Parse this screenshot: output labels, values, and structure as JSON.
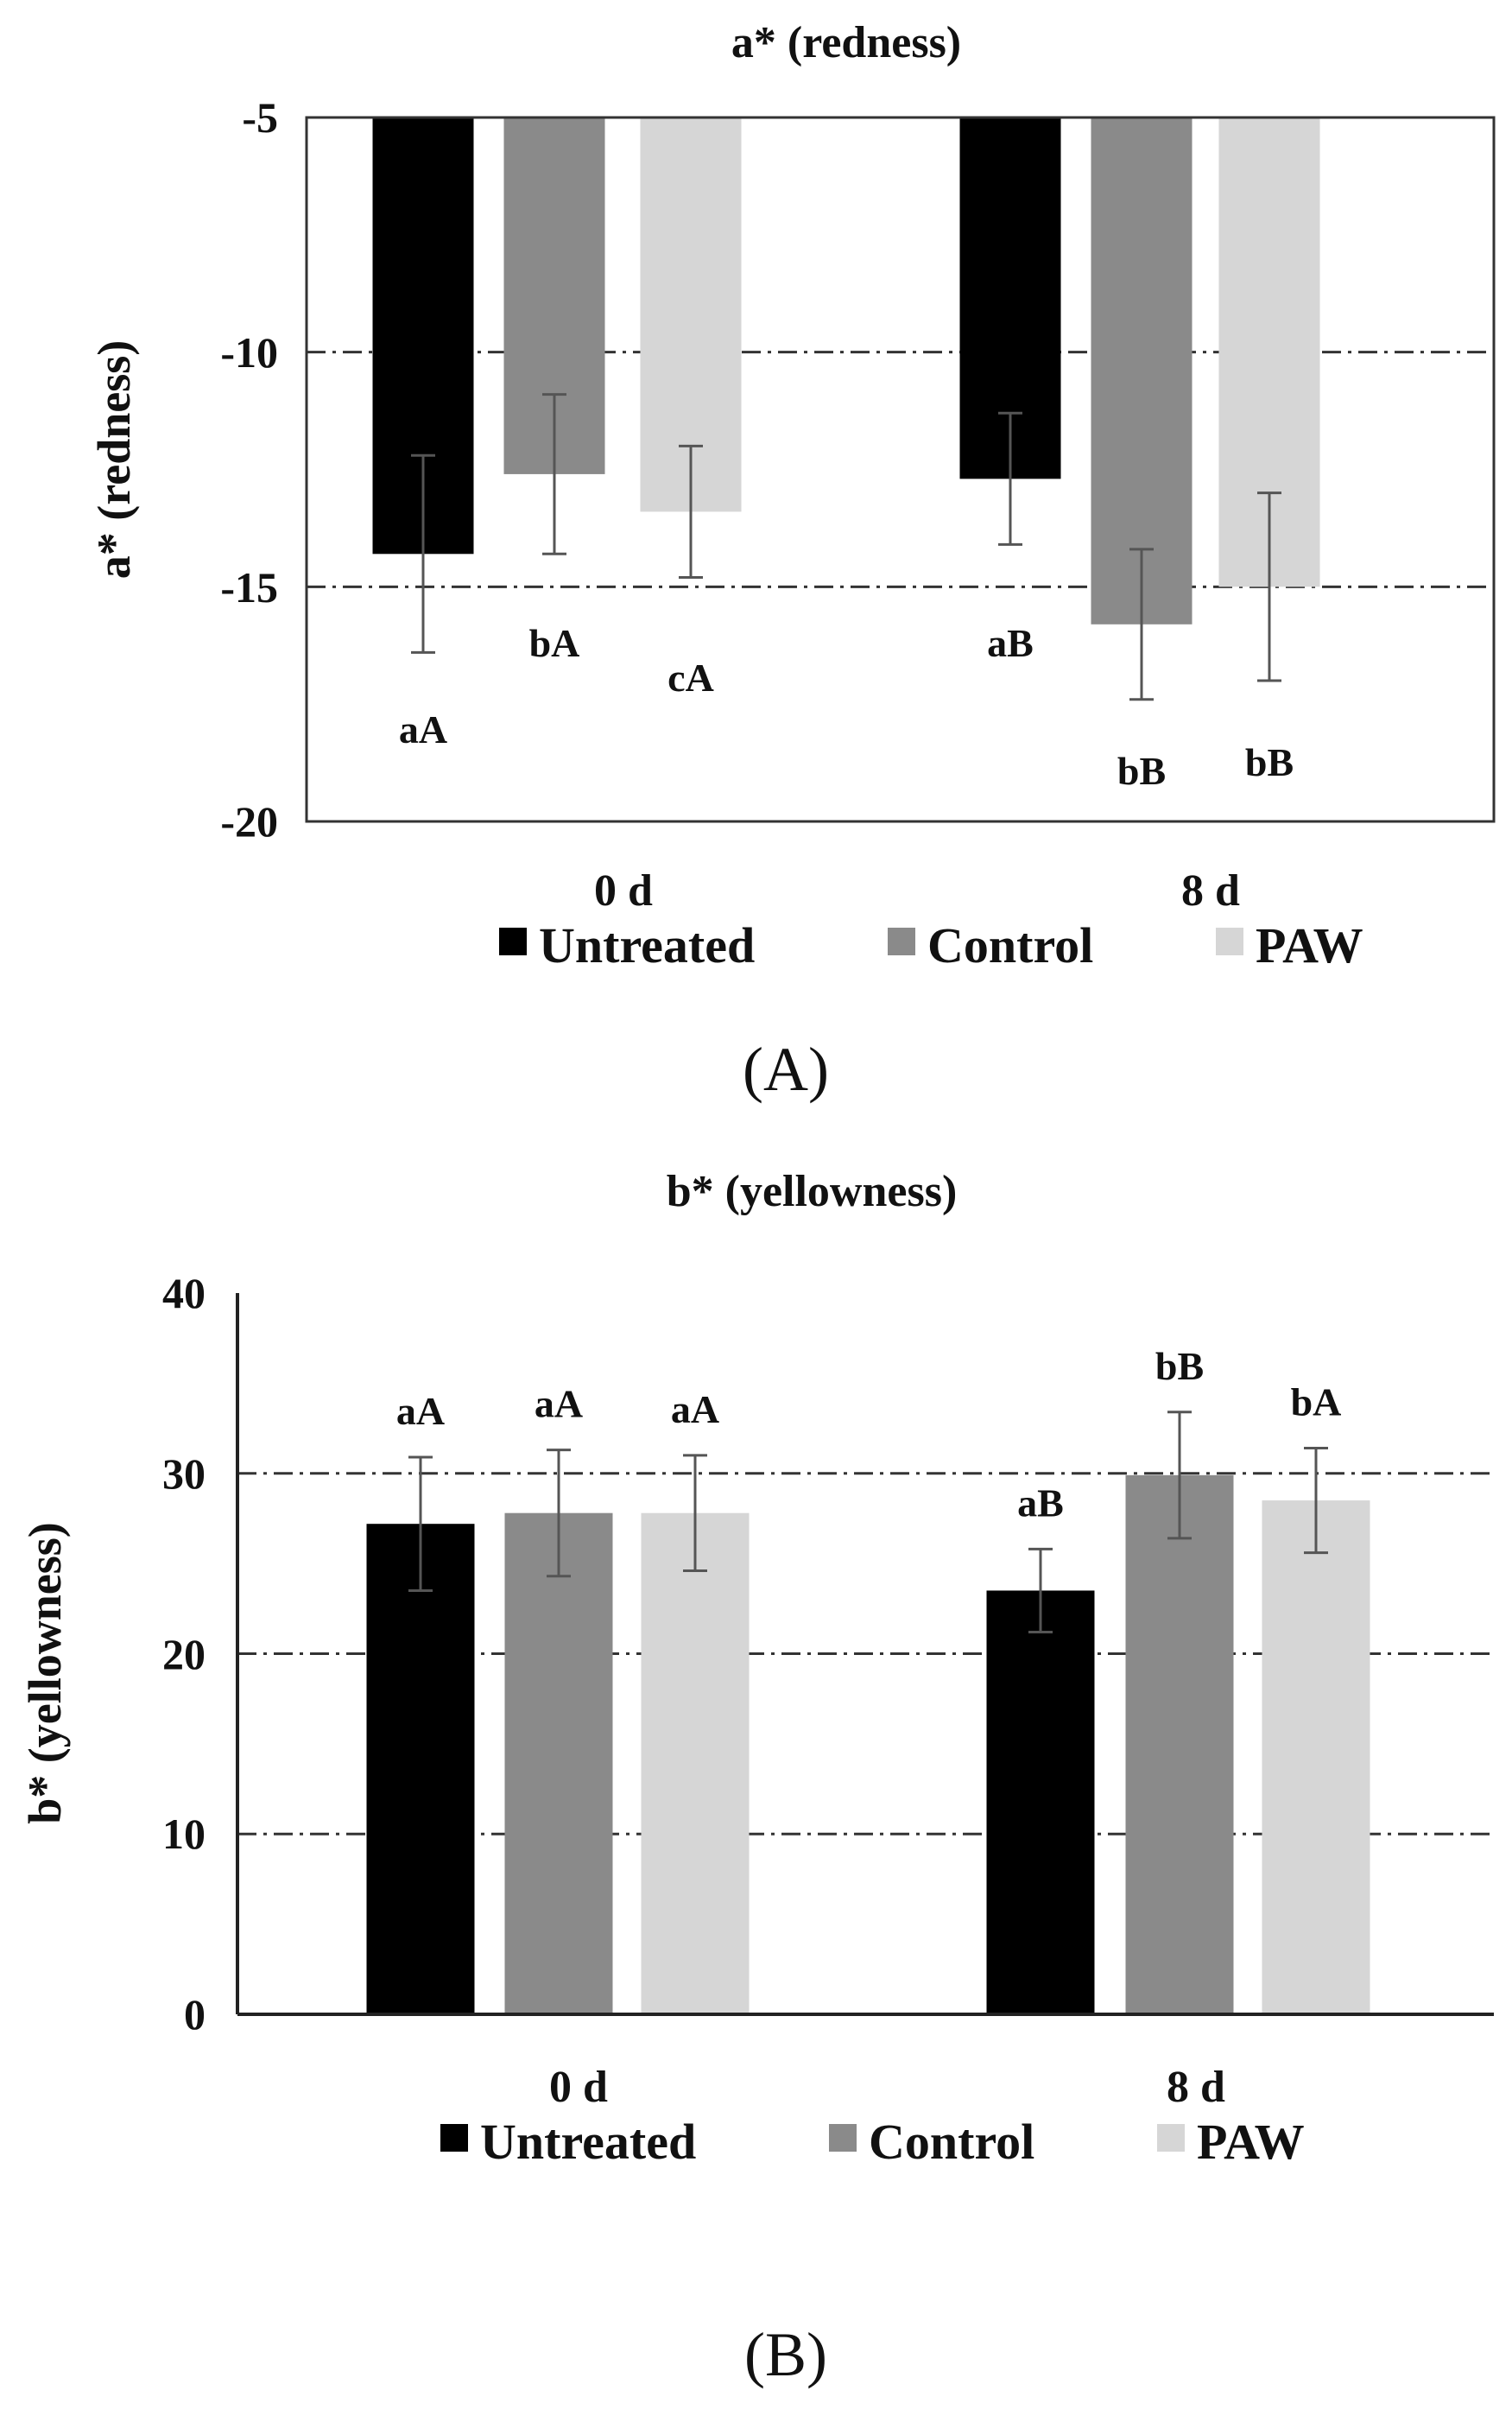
{
  "chart_data": [
    {
      "type": "bar",
      "title": "a* (redness)",
      "ylabel": "a* (redness)",
      "xlabel": "",
      "ylim": [
        -20,
        -5
      ],
      "yticks": [
        -5,
        -10,
        -15,
        -20
      ],
      "grid": "horizontal dash-dot",
      "categories": [
        "0 d",
        "8 d"
      ],
      "series": [
        {
          "name": "Untreated",
          "color": "#000000",
          "values": [
            -14.3,
            -12.7
          ],
          "errors": [
            2.1,
            1.4
          ],
          "labels": [
            "aA",
            "aB"
          ]
        },
        {
          "name": "Control",
          "color": "#8a8a8a",
          "values": [
            -12.6,
            -15.8
          ],
          "errors": [
            1.7,
            1.6
          ],
          "labels": [
            "bA",
            "bB"
          ]
        },
        {
          "name": "PAW",
          "color": "#d6d6d6",
          "values": [
            -13.4,
            -15.0
          ],
          "errors": [
            1.4,
            2.0
          ],
          "labels": [
            "cA",
            "bB"
          ]
        }
      ],
      "legend": "bottom",
      "panel_label": "(A)"
    },
    {
      "type": "bar",
      "title": "b* (yellowness)",
      "ylabel": "b* (yellowness)",
      "xlabel": "",
      "ylim": [
        0,
        40
      ],
      "yticks": [
        0,
        10,
        20,
        30,
        40
      ],
      "grid": "horizontal dash-dot",
      "categories": [
        "0 d",
        "8 d"
      ],
      "series": [
        {
          "name": "Untreated",
          "color": "#000000",
          "values": [
            27.2,
            23.5
          ],
          "errors": [
            3.7,
            2.3
          ],
          "labels": [
            "aA",
            "aB"
          ]
        },
        {
          "name": "Control",
          "color": "#8a8a8a",
          "values": [
            27.8,
            29.9
          ],
          "errors": [
            3.5,
            3.5
          ],
          "labels": [
            "aA",
            "bB"
          ]
        },
        {
          "name": "PAW",
          "color": "#d6d6d6",
          "values": [
            27.8,
            28.5
          ],
          "errors": [
            3.2,
            2.9
          ],
          "labels": [
            "aA",
            "bA"
          ]
        }
      ],
      "legend": "bottom",
      "panel_label": "(B)"
    }
  ]
}
